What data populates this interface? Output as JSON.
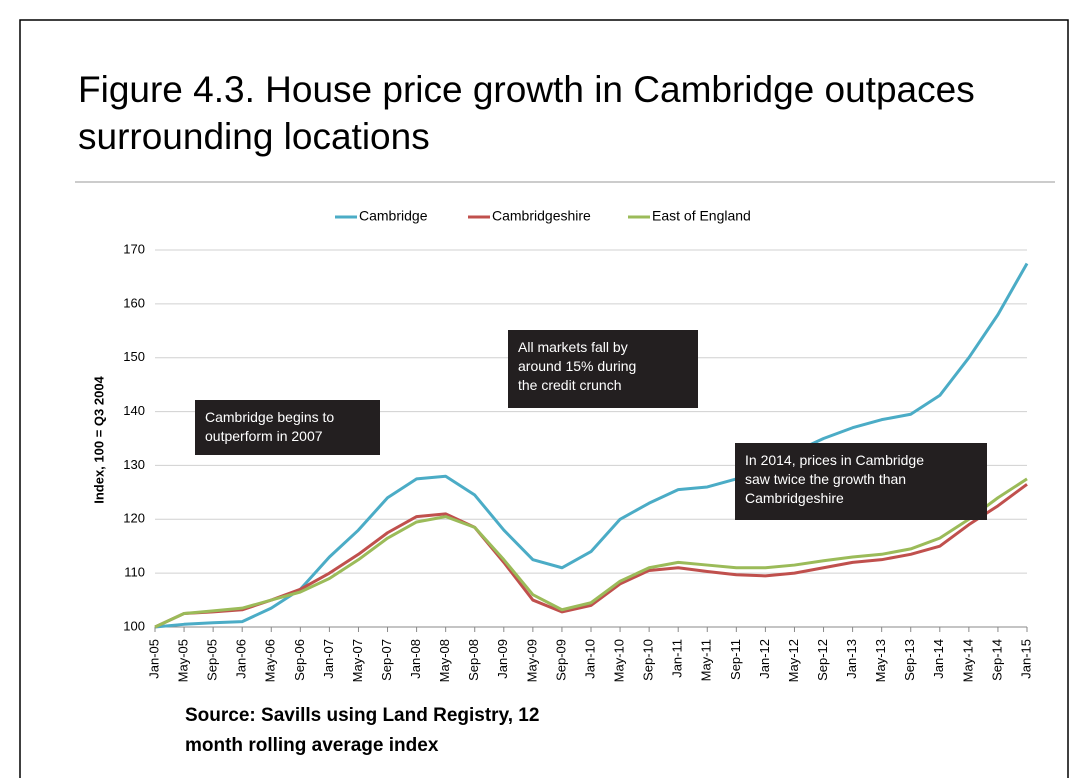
{
  "chart_data": {
    "type": "line",
    "title": [
      "Figure 4.3. House price growth in Cambridge outpaces",
      "surrounding locations"
    ],
    "y_label": "Index, 100 = Q3 2004",
    "source": [
      "Source: Savills using Land Registry, 12",
      "month rolling average index"
    ],
    "annotations": [
      [
        "Cambridge begins to",
        "outperform in 2007"
      ],
      [
        "All markets fall by",
        "around 15% during",
        "the credit crunch"
      ],
      [
        "In 2014, prices in Cambridge",
        "saw twice the growth than",
        "Cambridgeshire"
      ]
    ],
    "categories": [
      "Jan-05",
      "May-05",
      "Sep-05",
      "Jan-06",
      "May-06",
      "Sep-06",
      "Jan-07",
      "May-07",
      "Sep-07",
      "Jan-08",
      "May-08",
      "Sep-08",
      "Jan-09",
      "May-09",
      "Sep-09",
      "Jan-10",
      "May-10",
      "Sep-10",
      "Jan-11",
      "May-11",
      "Sep-11",
      "Jan-12",
      "May-12",
      "Sep-12",
      "Jan-13",
      "May-13",
      "Sep-13",
      "Jan-14",
      "May-14",
      "Sep-14",
      "Jan-15"
    ],
    "series": [
      {
        "name": "Cambridge",
        "color": "#4bacc6",
        "values": [
          100,
          100.5,
          100.8,
          101,
          103.5,
          107,
          113,
          118,
          124,
          127.5,
          128,
          124.5,
          118,
          112.5,
          111,
          114,
          120,
          123,
          125.5,
          126,
          127.5,
          129.5,
          132.5,
          135,
          137,
          138.5,
          139.5,
          143,
          150,
          158,
          167.5
        ]
      },
      {
        "name": "Cambridgeshire",
        "color": "#c0504d",
        "values": [
          100,
          102.5,
          102.8,
          103.2,
          105,
          107,
          110,
          113.5,
          117.5,
          120.5,
          121,
          118.5,
          112,
          105,
          102.8,
          104,
          108,
          110.5,
          111,
          110.3,
          109.7,
          109.5,
          110,
          111,
          112,
          112.5,
          113.5,
          115,
          119,
          122.5,
          126.5
        ]
      },
      {
        "name": "East of England",
        "color": "#9bbb59",
        "values": [
          100,
          102.5,
          103,
          103.5,
          105,
          106.5,
          109,
          112.5,
          116.5,
          119.5,
          120.5,
          118.5,
          112.5,
          106,
          103.2,
          104.5,
          108.5,
          111,
          112,
          111.5,
          111,
          111,
          111.5,
          112.3,
          113,
          113.5,
          114.5,
          116.5,
          120,
          124,
          127.5
        ]
      }
    ],
    "ylim": [
      100,
      170
    ],
    "yticks": [
      100,
      110,
      120,
      130,
      140,
      150,
      160,
      170
    ],
    "grid": true,
    "legend": "top"
  }
}
